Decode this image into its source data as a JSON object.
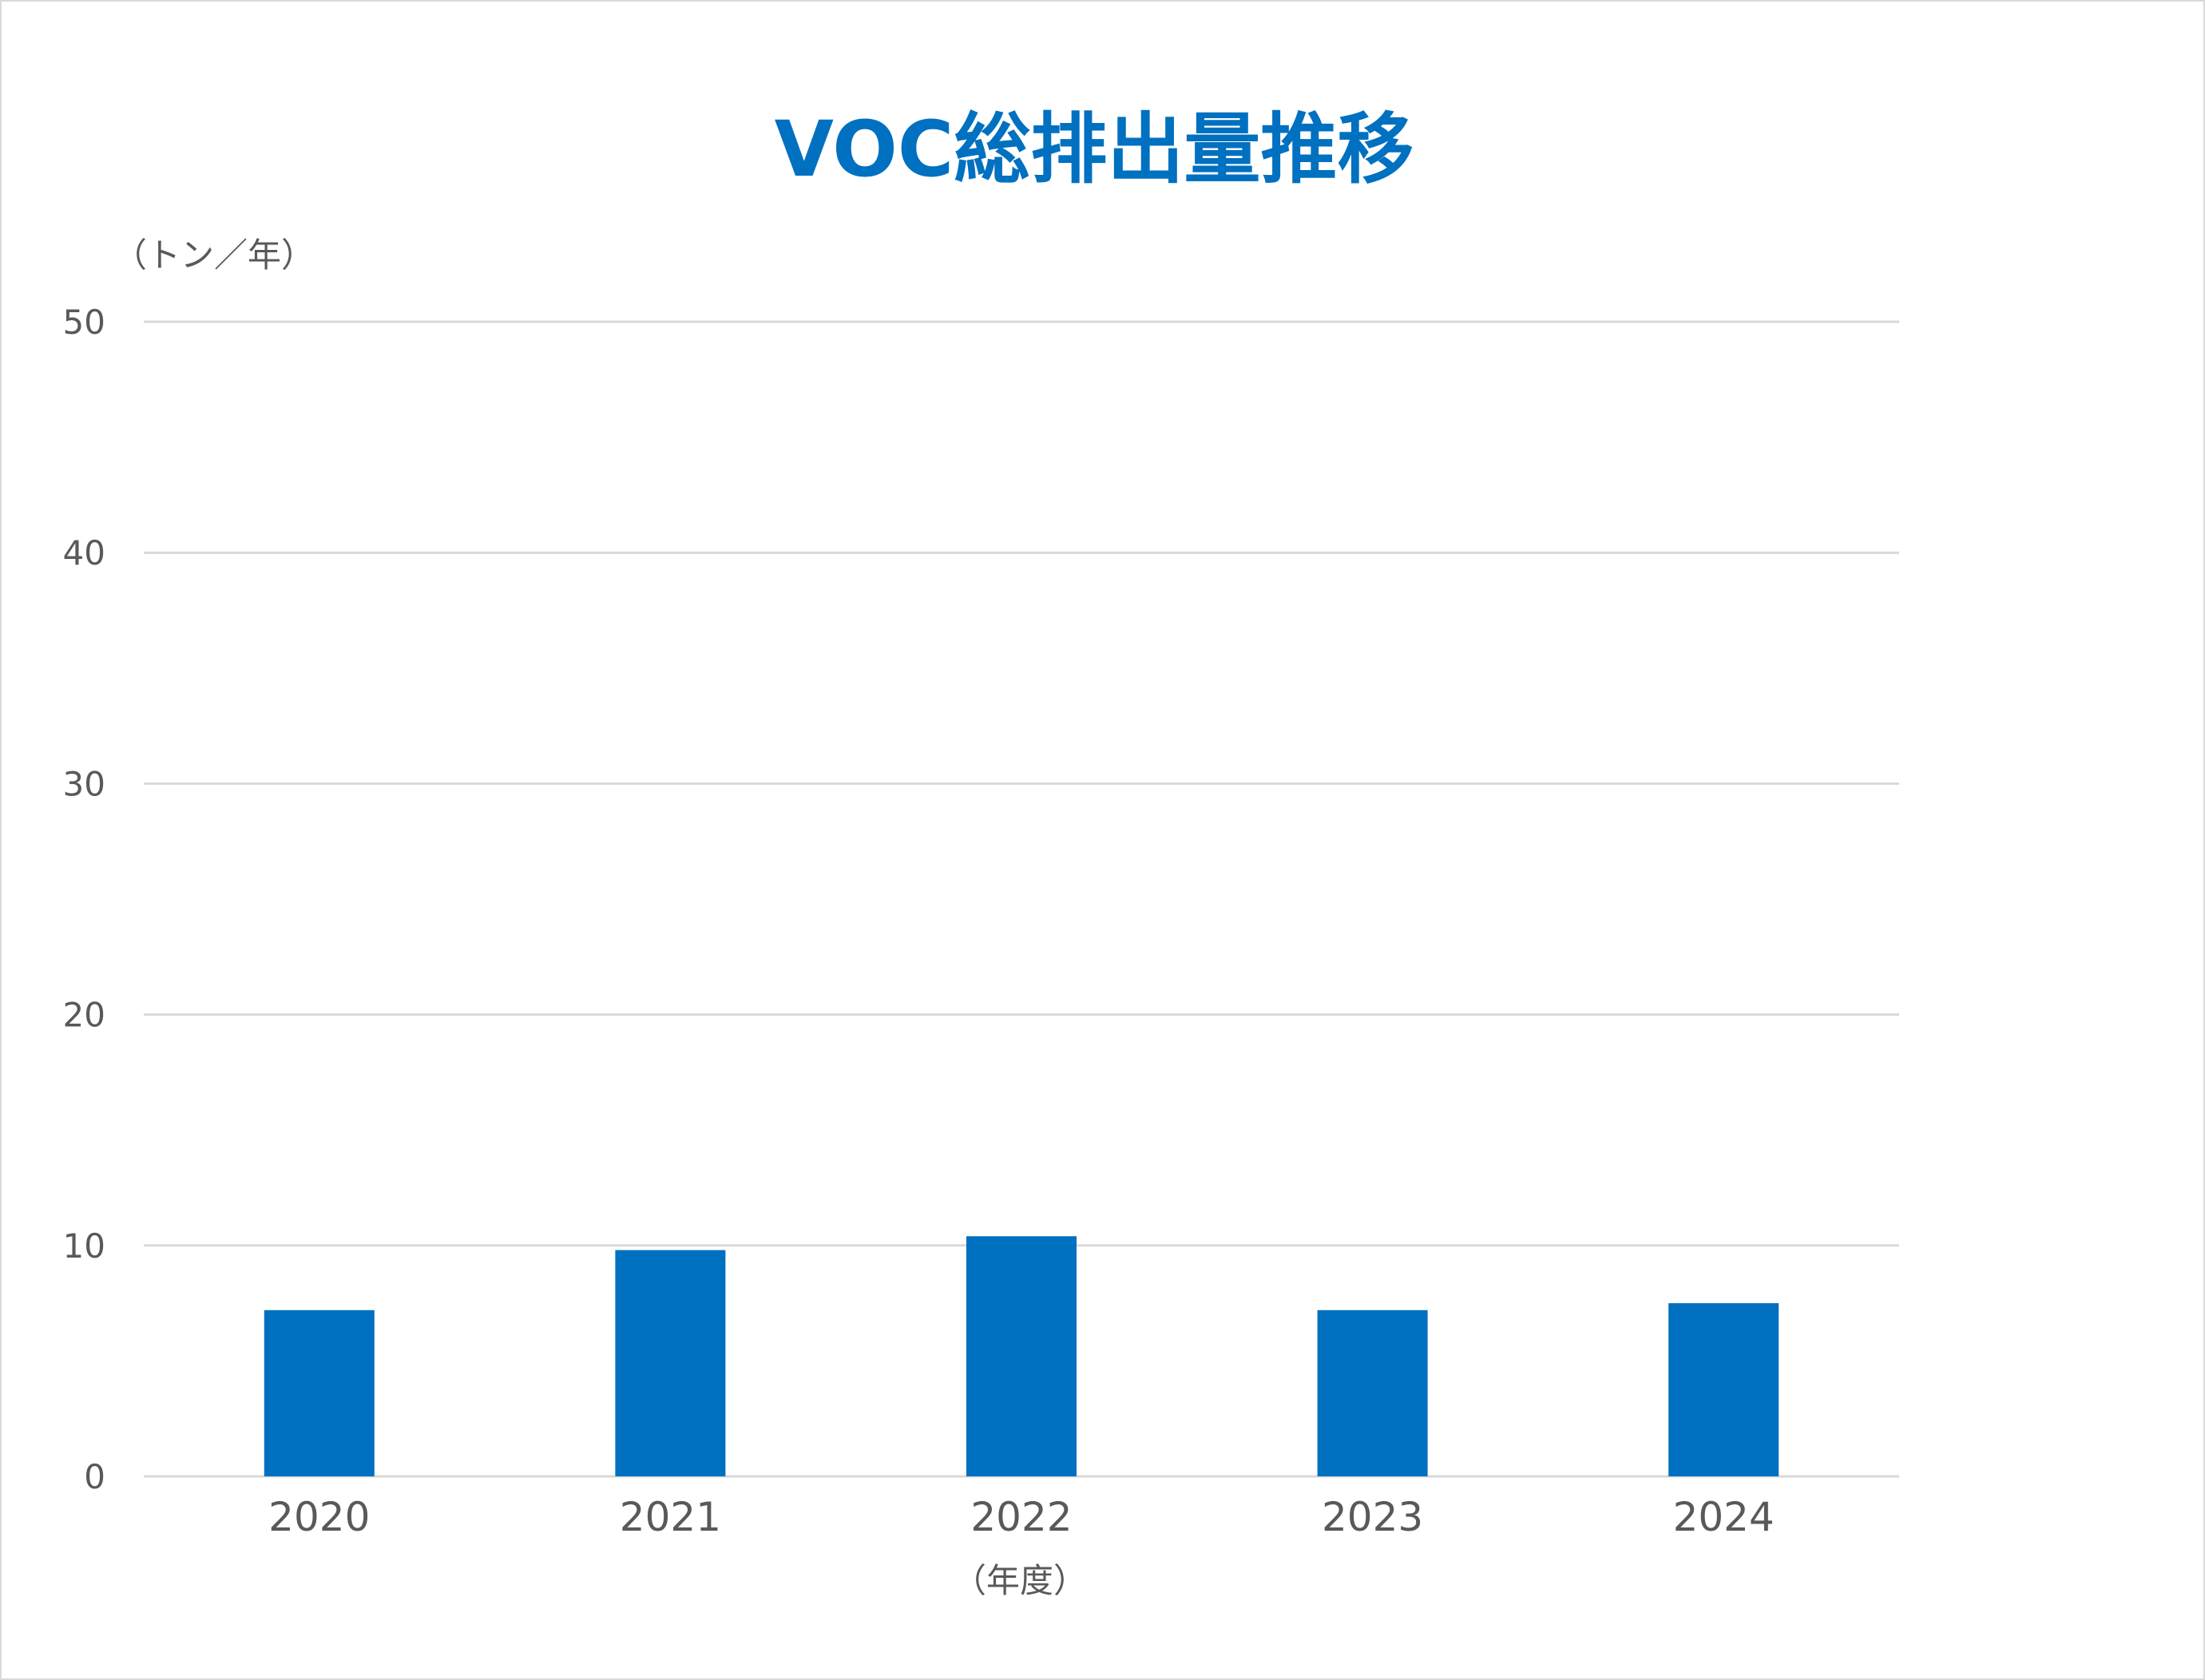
{
  "chart_data": {
    "type": "bar",
    "title": "VOC総排出量推移",
    "ylabel": "（トン／年）",
    "xlabel": "（年度）",
    "categories": [
      "2020",
      "2021",
      "2022",
      "2023",
      "2024"
    ],
    "series": [
      {
        "values": [
          7.2,
          9.8,
          10.4,
          7.2,
          7.5
        ]
      }
    ],
    "ylim": [
      0,
      50
    ],
    "yticks": [
      "0",
      "10",
      "20",
      "30",
      "40",
      "50"
    ],
    "grid": true,
    "legend": "none",
    "colors": {
      "title": "#0070C0",
      "bar": "#0070C0",
      "gridline": "#D9D9D9",
      "axis_text": "#595959"
    }
  }
}
